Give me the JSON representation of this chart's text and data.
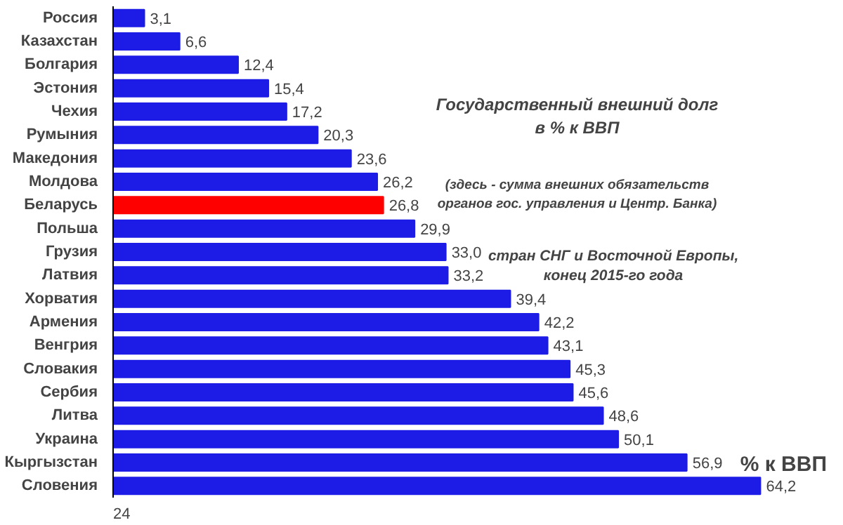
{
  "chart_data": {
    "type": "bar",
    "orientation": "horizontal",
    "title": "Государственный внешний долг в % к ВВП",
    "subtitle": "(здесь - сумма внешних обязательств органов гос. управления и Центр. Банка)",
    "xlabel": "% к ВВП",
    "annotations": [
      "стран СНГ и Восточной Европы, конец 2015-го года",
      "24"
    ],
    "categories": [
      "Россия",
      "Казахстан",
      "Болгария",
      "Эстония",
      "Чехия",
      "Румыния",
      "Македония",
      "Молдова",
      "Беларусь",
      "Польша",
      "Грузия",
      "Латвия",
      "Хорватия",
      "Армения",
      "Венгрия",
      "Словакия",
      "Сербия",
      "Литва",
      "Украина",
      "Кыргызстан",
      "Словения"
    ],
    "values": [
      3.1,
      6.6,
      12.4,
      15.4,
      17.2,
      20.3,
      23.6,
      26.2,
      26.8,
      29.9,
      33.0,
      33.2,
      39.4,
      42.2,
      43.1,
      45.3,
      45.6,
      48.6,
      50.1,
      56.9,
      64.2
    ],
    "value_labels": [
      "3,1",
      "6,6",
      "12,4",
      "15,4",
      "17,2",
      "20,3",
      "23,6",
      "26,2",
      "26,8",
      "29,9",
      "33,0",
      "33,2",
      "39,4",
      "42,2",
      "43,1",
      "45,3",
      "45,6",
      "48,6",
      "50,1",
      "56,9",
      "64,2"
    ],
    "colors": [
      "#1c1ce6",
      "#1c1ce6",
      "#1c1ce6",
      "#1c1ce6",
      "#1c1ce6",
      "#1c1ce6",
      "#1c1ce6",
      "#1c1ce6",
      "#ff0000",
      "#1c1ce6",
      "#1c1ce6",
      "#1c1ce6",
      "#1c1ce6",
      "#1c1ce6",
      "#1c1ce6",
      "#1c1ce6",
      "#1c1ce6",
      "#1c1ce6",
      "#1c1ce6",
      "#1c1ce6",
      "#1c1ce6"
    ],
    "grid": false
  }
}
